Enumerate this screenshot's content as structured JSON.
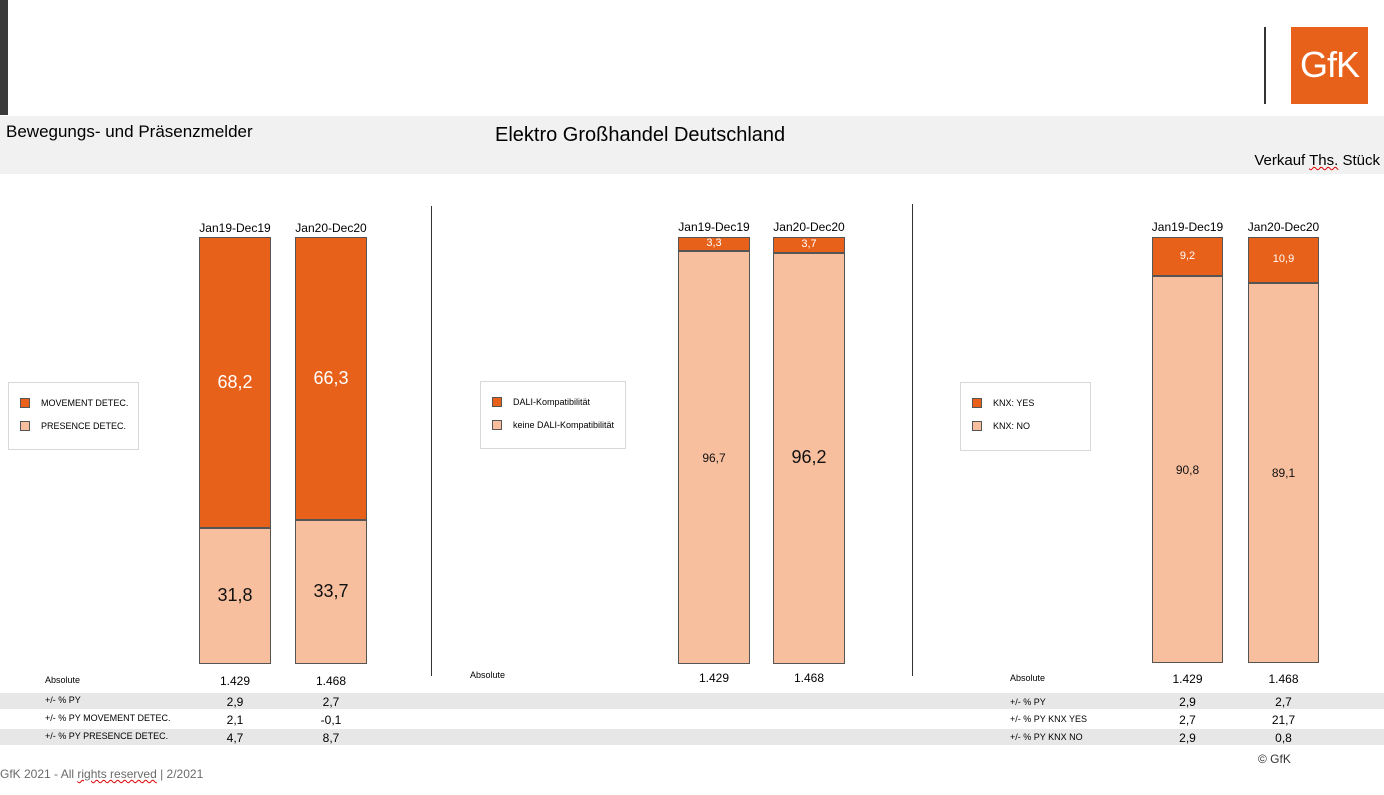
{
  "header": {
    "subtitle": "Bewegungs- und Präsenzmelder",
    "title": "Elektro Großhandel Deutschland",
    "unit_prefix": "Verkauf ",
    "unit_squig": "Ths.",
    "unit_suffix": " Stück",
    "logo": "GfK"
  },
  "colors": {
    "dark": "#e8611a",
    "light": "#f8bf9f",
    "band": "#e7e7e7"
  },
  "chart_data": [
    {
      "type": "bar",
      "stacked": true,
      "percent": true,
      "categories": [
        "Jan19-Dec19",
        "Jan20-Dec20"
      ],
      "series": [
        {
          "name": "MOVEMENT DETEC.",
          "values": [
            68.2,
            66.3
          ],
          "labels": [
            "68,2",
            "66,3"
          ]
        },
        {
          "name": "PRESENCE DETEC.",
          "values": [
            31.8,
            33.7
          ],
          "labels": [
            "31,8",
            "33,7"
          ]
        }
      ],
      "ylim": [
        0,
        100
      ],
      "rows": [
        {
          "label": "Absolute",
          "values": [
            "1.429",
            "1.468"
          ]
        },
        {
          "label": "+/- % PY",
          "values": [
            "2,9",
            "2,7"
          ]
        },
        {
          "label": "+/- % PY MOVEMENT DETEC.",
          "values": [
            "2,1",
            "-0,1"
          ]
        },
        {
          "label": "+/- % PY PRESENCE DETEC.",
          "values": [
            "4,7",
            "8,7"
          ]
        }
      ]
    },
    {
      "type": "bar",
      "stacked": true,
      "percent": true,
      "categories": [
        "Jan19-Dec19",
        "Jan20-Dec20"
      ],
      "series": [
        {
          "name": "DALI-Kompatibilität",
          "values": [
            3.3,
            3.7
          ],
          "labels": [
            "3,3",
            "3,7"
          ]
        },
        {
          "name": "keine DALI-Kompatibilität",
          "values": [
            96.7,
            96.2
          ],
          "labels": [
            "96,7",
            "96,2"
          ]
        }
      ],
      "ylim": [
        0,
        100
      ],
      "rows": [
        {
          "label": "Absolute",
          "values": [
            "1.429",
            "1.468"
          ]
        }
      ]
    },
    {
      "type": "bar",
      "stacked": true,
      "percent": true,
      "categories": [
        "Jan19-Dec19",
        "Jan20-Dec20"
      ],
      "series": [
        {
          "name": "KNX: YES",
          "values": [
            9.2,
            10.9
          ],
          "labels": [
            "9,2",
            "10,9"
          ]
        },
        {
          "name": "KNX: NO",
          "values": [
            90.8,
            89.1
          ],
          "labels": [
            "90,8",
            "89,1"
          ]
        }
      ],
      "ylim": [
        0,
        100
      ],
      "rows": [
        {
          "label": "Absolute",
          "values": [
            "1.429",
            "1.468"
          ]
        },
        {
          "label": "+/- % PY",
          "values": [
            "2,9",
            "2,7"
          ]
        },
        {
          "label": "+/- % PY KNX YES",
          "values": [
            "2,7",
            "21,7"
          ]
        },
        {
          "label": "+/- % PY KNX NO",
          "values": [
            "2,9",
            "0,8"
          ]
        }
      ]
    }
  ],
  "footer": {
    "text_prefix": "GfK 2021 - All ",
    "text_squig": "rights reserved",
    "text_suffix": " | 2/2021",
    "copyright": "© GfK"
  }
}
